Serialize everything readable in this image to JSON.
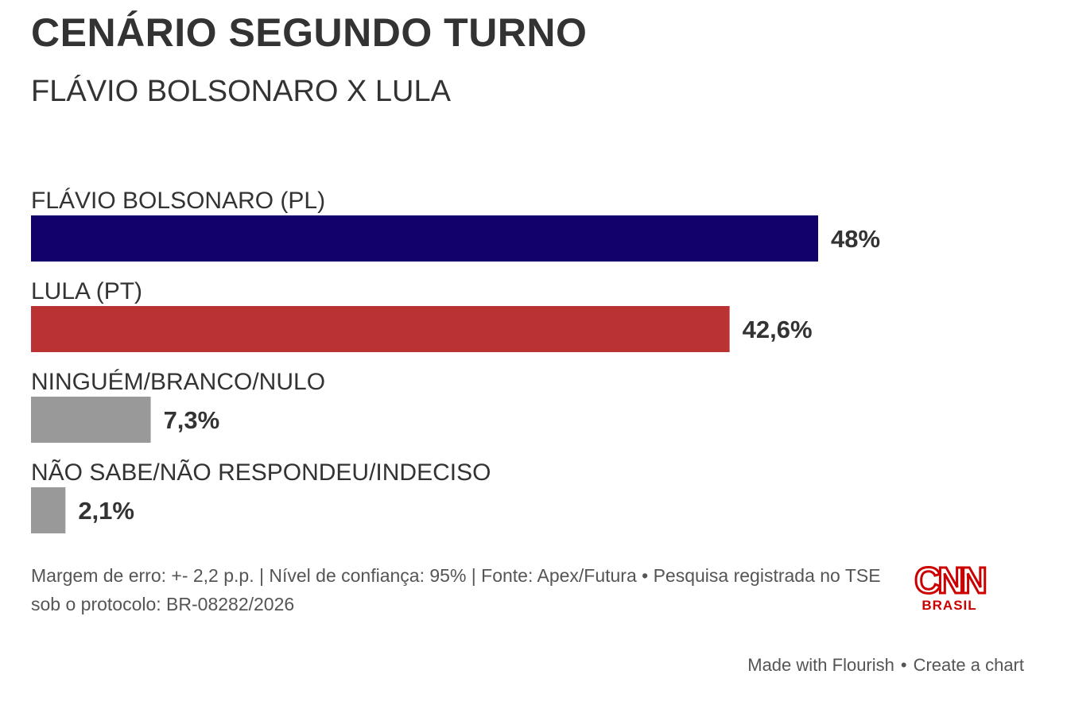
{
  "header": {
    "title": "CENÁRIO SEGUNDO TURNO",
    "subtitle": "FLÁVIO BOLSONARO X LULA"
  },
  "chart_data": {
    "type": "bar",
    "orientation": "horizontal",
    "title": "CENÁRIO SEGUNDO TURNO",
    "subtitle": "FLÁVIO BOLSONARO X LULA",
    "xlim": [
      0,
      48
    ],
    "categories": [
      "FLÁVIO BOLSONARO (PL)",
      "LULA (PT)",
      "NINGUÉM/BRANCO/NULO",
      "NÃO SABE/NÃO RESPONDEU/INDECISO"
    ],
    "values": [
      48,
      42.6,
      7.3,
      2.1
    ],
    "value_labels": [
      "48%",
      "42,6%",
      "7,3%",
      "2,1%"
    ],
    "colors": [
      "#12006b",
      "#ba3232",
      "#999999",
      "#999999"
    ],
    "grid": false,
    "legend": "none"
  },
  "footer": {
    "note": "Margem de erro: +- 2,2 p.p. | Nível de confiança: 95% | Fonte: Apex/Futura • Pesquisa registrada no TSE sob o protocolo: BR-08282/2026",
    "logo_text": "CNN",
    "logo_sub": "BRASIL",
    "logo_color": "#cc0000",
    "made_with": "Made with Flourish",
    "separator": "•",
    "create_link": "Create a chart"
  }
}
